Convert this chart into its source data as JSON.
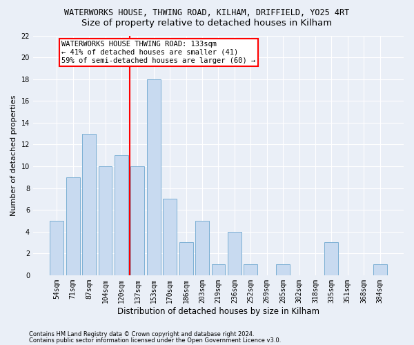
{
  "title1": "WATERWORKS HOUSE, THWING ROAD, KILHAM, DRIFFIELD, YO25 4RT",
  "title2": "Size of property relative to detached houses in Kilham",
  "xlabel": "Distribution of detached houses by size in Kilham",
  "ylabel": "Number of detached properties",
  "bar_labels": [
    "54sqm",
    "71sqm",
    "87sqm",
    "104sqm",
    "120sqm",
    "137sqm",
    "153sqm",
    "170sqm",
    "186sqm",
    "203sqm",
    "219sqm",
    "236sqm",
    "252sqm",
    "269sqm",
    "285sqm",
    "302sqm",
    "318sqm",
    "335sqm",
    "351sqm",
    "368sqm",
    "384sqm"
  ],
  "bar_values": [
    5,
    9,
    13,
    10,
    11,
    10,
    18,
    7,
    3,
    5,
    1,
    4,
    1,
    0,
    1,
    0,
    0,
    3,
    0,
    0,
    1
  ],
  "bar_color": "#c8daf0",
  "bar_edge_color": "#7bafd4",
  "vline_color": "red",
  "vline_pos": 4.5,
  "annotation_text": "WATERWORKS HOUSE THWING ROAD: 133sqm\n← 41% of detached houses are smaller (41)\n59% of semi-detached houses are larger (60) →",
  "annotation_box_color": "white",
  "annotation_box_edge_color": "red",
  "ylim": [
    0,
    22
  ],
  "yticks": [
    0,
    2,
    4,
    6,
    8,
    10,
    12,
    14,
    16,
    18,
    20,
    22
  ],
  "footer1": "Contains HM Land Registry data © Crown copyright and database right 2024.",
  "footer2": "Contains public sector information licensed under the Open Government Licence v3.0.",
  "bg_color": "#eaeff7",
  "grid_color": "white",
  "title1_fontsize": 8.5,
  "title2_fontsize": 9.5,
  "xlabel_fontsize": 8.5,
  "ylabel_fontsize": 8,
  "tick_fontsize": 7,
  "annotation_fontsize": 7.5,
  "footer_fontsize": 6
}
